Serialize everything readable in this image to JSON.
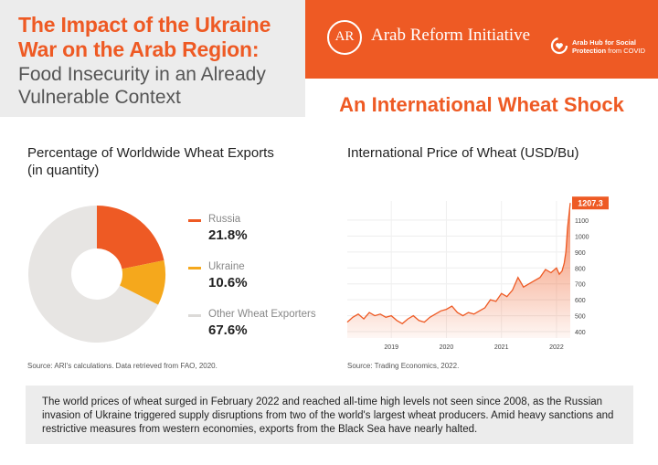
{
  "header": {
    "title_main": "The Impact of the Ukraine War on the Arab Region:",
    "title_sub": "Food Insecurity in an Already Vulnerable Context",
    "logo_letters": "AR",
    "org_name": "Arab Reform Initiative",
    "hub_line1": "Arab Hub for Social",
    "hub_line2_bold": "Protection",
    "hub_line2_rest": " from COVID"
  },
  "section_title": "An International Wheat Shock",
  "left_panel": {
    "title": "Percentage of Worldwide Wheat Exports (in quantity)",
    "source": "Source: ARI's calculations. Data retrieved from FAO, 2020."
  },
  "right_panel": {
    "title": "International Price of Wheat (USD/Bu)",
    "source": "Source: Trading Economics, 2022."
  },
  "summary": "The world prices of wheat surged in February 2022 and reached all-time high levels not seen since 2008, as the Russian invasion of Ukraine triggered supply disruptions from two of the world's largest wheat producers. Amid heavy sanctions and restrictive measures from western economies, exports from the Black Sea have nearly halted.",
  "colors": {
    "accent": "#ee5a24",
    "ukraine": "#f5a81c",
    "other": "#e7e5e3",
    "panel_bg": "#ececec"
  },
  "chart_data": [
    {
      "type": "pie",
      "donut": true,
      "slices": [
        {
          "label": "Russia",
          "value": 21.8,
          "display": "21.8%",
          "color": "#ee5a24"
        },
        {
          "label": "Ukraine",
          "value": 10.6,
          "display": "10.6%",
          "color": "#f5a81c"
        },
        {
          "label": "Other Wheat Exporters",
          "value": 67.6,
          "display": "67.6%",
          "color": "#e7e5e3"
        }
      ],
      "legend_position": "right"
    },
    {
      "type": "area",
      "x_ticks": [
        "2019",
        "2020",
        "2021",
        "2022"
      ],
      "y_ticks": [
        400,
        500,
        600,
        700,
        800,
        900,
        1000,
        1100
      ],
      "ylim": [
        360,
        1220
      ],
      "xlim": [
        2018.2,
        2022.25
      ],
      "grid": true,
      "last_value_label": "1207.3",
      "series": [
        {
          "x": [
            2018.2,
            2018.3,
            2018.4,
            2018.5,
            2018.6,
            2018.7,
            2018.8,
            2018.9,
            2019.0,
            2019.1,
            2019.2,
            2019.3,
            2019.4,
            2019.5,
            2019.6,
            2019.7,
            2019.8,
            2019.9,
            2020.0,
            2020.1,
            2020.2,
            2020.3,
            2020.4,
            2020.5,
            2020.6,
            2020.7,
            2020.8,
            2020.9,
            2021.0,
            2021.1,
            2021.2,
            2021.3,
            2021.4,
            2021.5,
            2021.6,
            2021.7,
            2021.8,
            2021.9,
            2022.0,
            2022.05,
            2022.1,
            2022.14,
            2022.17,
            2022.2,
            2022.25
          ],
          "values": [
            460,
            490,
            510,
            480,
            520,
            500,
            510,
            490,
            500,
            470,
            450,
            480,
            500,
            470,
            460,
            490,
            510,
            530,
            540,
            560,
            520,
            500,
            520,
            510,
            530,
            550,
            600,
            590,
            640,
            620,
            660,
            740,
            680,
            700,
            720,
            740,
            790,
            770,
            800,
            760,
            780,
            830,
            900,
            1050,
            1207.3
          ]
        }
      ]
    }
  ]
}
